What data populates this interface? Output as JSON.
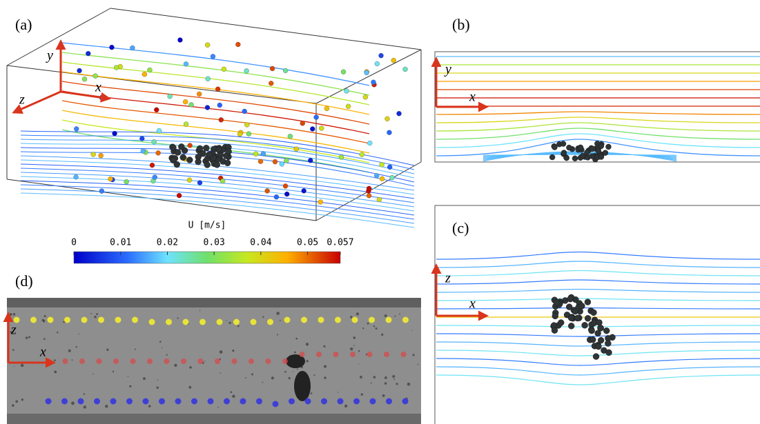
{
  "panels": [
    {
      "label": "(a)",
      "axes": [
        "y",
        "z",
        "x"
      ]
    },
    {
      "label": "(b)",
      "axes": [
        "y",
        "x"
      ]
    },
    {
      "label": "(c)",
      "axes": [
        "z",
        "x"
      ]
    },
    {
      "label": "(d)",
      "axes": [
        "z",
        "x"
      ]
    }
  ],
  "colorbar": {
    "label": "U [m/s]",
    "lim": [
      0,
      0.057
    ],
    "ticks": [
      0,
      0.01,
      0.02,
      0.03,
      0.04,
      0.05,
      0.057
    ]
  }
}
